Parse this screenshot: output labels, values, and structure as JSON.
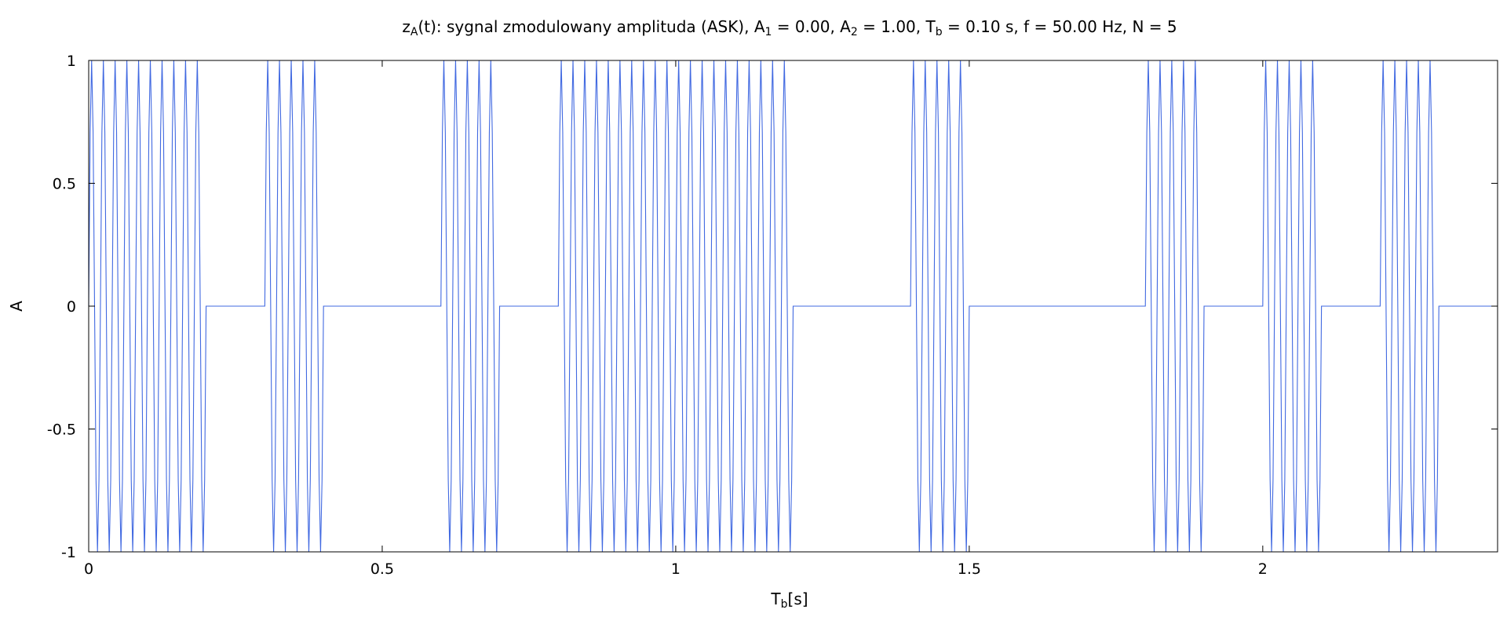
{
  "chart_data": {
    "type": "line",
    "title": {
      "prefix": "z",
      "prefix_sub": "A",
      "part1": "(t): sygnal zmodulowany amplituda (ASK), A",
      "a1_sub": "1",
      "part2": " = 0.00, A",
      "a2_sub": "2",
      "part3": " = 1.00, T",
      "tb_sub": "b",
      "part4": " = 0.10 s, f = 50.00 Hz, N = 5"
    },
    "xlabel": {
      "main": "T",
      "sub": "b",
      "rest": "[s]"
    },
    "ylabel": "A",
    "xlim": [
      0,
      2.4
    ],
    "ylim": [
      -1,
      1
    ],
    "xticks": [
      {
        "value": 0,
        "label": "0"
      },
      {
        "value": 0.5,
        "label": "0.5"
      },
      {
        "value": 1,
        "label": "1"
      },
      {
        "value": 1.5,
        "label": "1.5"
      },
      {
        "value": 2,
        "label": "2"
      }
    ],
    "yticks": [
      {
        "value": 1,
        "label": "1"
      },
      {
        "value": 0.5,
        "label": "0.5"
      },
      {
        "value": 0,
        "label": "0"
      },
      {
        "value": -0.5,
        "label": "-0.5"
      },
      {
        "value": -1,
        "label": "-1"
      }
    ],
    "grid": false,
    "series": [
      {
        "color": "#4169e1",
        "carrier_frequency_hz": 50,
        "amplitude_when_bit_1": 1.0,
        "amplitude_when_bit_0": 0.0,
        "bit_duration_s": 0.1,
        "bits": [
          1,
          1,
          0,
          1,
          0,
          0,
          1,
          0,
          1,
          1,
          1,
          1,
          0,
          0,
          1,
          0,
          0,
          0,
          1,
          0,
          1,
          0,
          1,
          0
        ]
      }
    ]
  }
}
